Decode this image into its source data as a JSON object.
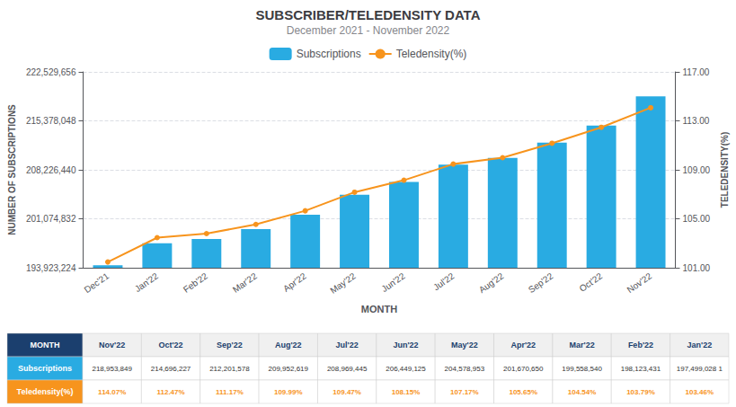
{
  "chart_data": {
    "type": "bar",
    "title": "SUBSCRIBER/TELEDENSITY DATA",
    "subtitle": "December 2021 - November 2022",
    "xlabel": "MONTH",
    "ylabel": "NUMBER OF SUBSCRIPTIONS",
    "y2label": "TELEDENSITY(%)",
    "categories": [
      "Dec'21",
      "Jan'22",
      "Feb'22",
      "Mar'22",
      "Apr'22",
      "May'22",
      "Jun'22",
      "Jul'22",
      "Aug'22",
      "Sep'22",
      "Oct'22",
      "Nov'22"
    ],
    "series": [
      {
        "name": "Subscriptions",
        "type": "bar",
        "color": "#29ABE2",
        "values": [
          194279190,
          197499028,
          198123431,
          199558540,
          201670650,
          204578953,
          206449125,
          208969445,
          209952619,
          212201578,
          214696227,
          218953849
        ]
      },
      {
        "name": "Teledensity(%)",
        "type": "line",
        "axis": "y2",
        "color": "#F7941D",
        "marker": "circle",
        "values": [
          101.47,
          103.46,
          103.79,
          104.54,
          105.65,
          107.17,
          108.15,
          109.47,
          109.99,
          111.17,
          112.47,
          114.07
        ]
      }
    ],
    "ylim": [
      193923224,
      222529856
    ],
    "yticks": [
      {
        "value": 193923224,
        "label": "193,923,224"
      },
      {
        "value": 201074832,
        "label": "201,074,832"
      },
      {
        "value": 208226440,
        "label": "208,226,440"
      },
      {
        "value": 215378048,
        "label": "215,378,048"
      },
      {
        "value": 222529656,
        "label": "222,529,656"
      }
    ],
    "y2lim": [
      101.0,
      117.0
    ],
    "y2ticks": [
      {
        "value": 101,
        "label": "101.00"
      },
      {
        "value": 105,
        "label": "105.00"
      },
      {
        "value": 109,
        "label": "109.00"
      },
      {
        "value": 113,
        "label": "113.00"
      },
      {
        "value": 117,
        "label": "117.00"
      }
    ],
    "grid": true,
    "legend": "top",
    "table": {
      "header": [
        "MONTH",
        "Nov'22",
        "Oct'22",
        "Sep'22",
        "Aug'22",
        "Jul'22",
        "Jun'22",
        "May'22",
        "Apr'22",
        "Mar'22",
        "Feb'22",
        "Jan'22"
      ],
      "rows": [
        [
          "Subscriptions",
          "218,953,849",
          "214,696,227",
          "212,201,578",
          "209,952,619",
          "208,969,445",
          "206,449,125",
          "204,578,953",
          "201,670,650",
          "199,558,540",
          "198,123,431",
          "197,499,028 1"
        ],
        [
          "Teledensity(%)",
          "114.07%",
          "112.47%",
          "111.17%",
          "109.99%",
          "109.47%",
          "108.15%",
          "107.17%",
          "105.65%",
          "104.54%",
          "103.79%",
          "103.46%"
        ]
      ]
    }
  }
}
